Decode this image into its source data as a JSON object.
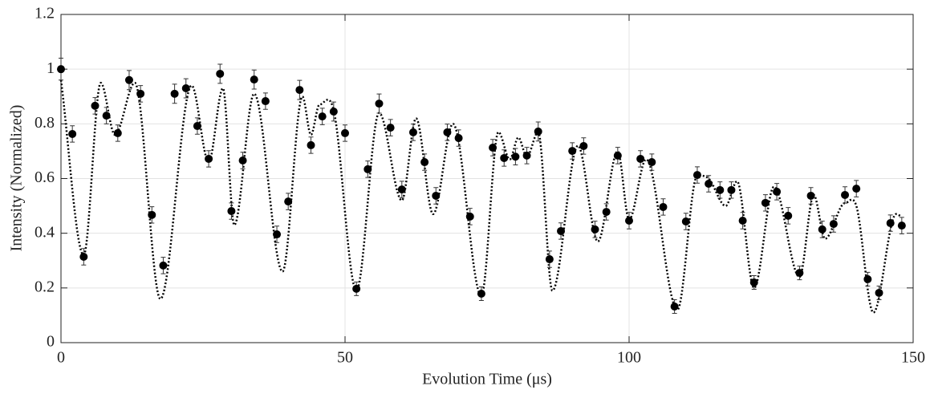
{
  "chart_data": {
    "type": "scatter",
    "xlabel": "Evolution Time (μs)",
    "ylabel": "Intensity (Normalized)",
    "xlim": [
      0,
      150
    ],
    "ylim": [
      0,
      1.2
    ],
    "xticks": [
      0,
      50,
      100,
      150
    ],
    "yticks": [
      0,
      0.2,
      0.4,
      0.6,
      0.8,
      1,
      1.2
    ],
    "grid": true,
    "series": [
      {
        "type": "scatter",
        "color": "#000000",
        "x": [
          0,
          2,
          4,
          6,
          8,
          10,
          12,
          14,
          16,
          18,
          20,
          22,
          24,
          26,
          28,
          30,
          32,
          34,
          36,
          38,
          40,
          42,
          44,
          46,
          48,
          50,
          52,
          54,
          56,
          58,
          60,
          62,
          64,
          66,
          68,
          70,
          72,
          74,
          76,
          78,
          80,
          82,
          84,
          86,
          88,
          90,
          92,
          94,
          96,
          98,
          100,
          102,
          104,
          106,
          108,
          110,
          112,
          114,
          116,
          118,
          120,
          122,
          124,
          126,
          128,
          130,
          132,
          134,
          136,
          138,
          140,
          142,
          144,
          146,
          148
        ],
        "values": [
          1.0,
          0.763,
          0.314,
          0.866,
          0.83,
          0.766,
          0.96,
          0.91,
          0.467,
          0.282,
          0.91,
          0.93,
          0.792,
          0.672,
          0.983,
          0.481,
          0.666,
          0.962,
          0.883,
          0.396,
          0.516,
          0.924,
          0.722,
          0.827,
          0.845,
          0.766,
          0.197,
          0.634,
          0.874,
          0.786,
          0.56,
          0.769,
          0.66,
          0.537,
          0.769,
          0.748,
          0.461,
          0.179,
          0.713,
          0.675,
          0.68,
          0.684,
          0.772,
          0.305,
          0.408,
          0.701,
          0.719,
          0.414,
          0.478,
          0.684,
          0.446,
          0.672,
          0.66,
          0.496,
          0.132,
          0.443,
          0.613,
          0.581,
          0.558,
          0.558,
          0.446,
          0.22,
          0.511,
          0.552,
          0.464,
          0.255,
          0.537,
          0.414,
          0.434,
          0.54,
          0.563,
          0.232,
          0.182,
          0.437,
          0.428
        ],
        "errors": [
          0.04,
          0.03,
          0.03,
          0.03,
          0.03,
          0.03,
          0.035,
          0.03,
          0.03,
          0.03,
          0.035,
          0.035,
          0.03,
          0.03,
          0.035,
          0.03,
          0.03,
          0.035,
          0.03,
          0.03,
          0.03,
          0.035,
          0.03,
          0.03,
          0.035,
          0.03,
          0.025,
          0.03,
          0.035,
          0.03,
          0.03,
          0.03,
          0.03,
          0.03,
          0.03,
          0.03,
          0.03,
          0.025,
          0.03,
          0.03,
          0.03,
          0.03,
          0.035,
          0.03,
          0.03,
          0.03,
          0.03,
          0.03,
          0.03,
          0.03,
          0.03,
          0.03,
          0.03,
          0.03,
          0.025,
          0.03,
          0.03,
          0.03,
          0.03,
          0.03,
          0.03,
          0.025,
          0.03,
          0.03,
          0.03,
          0.025,
          0.03,
          0.03,
          0.03,
          0.03,
          0.03,
          0.025,
          0.025,
          0.03,
          0.03
        ]
      },
      {
        "type": "line",
        "color": "#000000",
        "style": "dotted",
        "x": [
          0,
          4,
          7,
          9.5,
          13,
          17.5,
          23,
          26,
          28.5,
          30.5,
          34,
          39,
          42.5,
          44,
          45.5,
          48,
          52,
          56,
          60,
          62.5,
          65.5,
          69,
          74,
          77,
          79,
          80.5,
          82,
          84,
          86.5,
          91,
          94.5,
          98,
          100,
          103,
          108.5,
          112,
          114,
          117,
          119,
          122,
          125.5,
          130,
          132.5,
          134.5,
          138,
          140,
          143,
          147,
          148
        ],
        "values": [
          0.96,
          0.32,
          0.95,
          0.76,
          0.95,
          0.16,
          0.94,
          0.66,
          0.93,
          0.43,
          0.91,
          0.26,
          0.9,
          0.76,
          0.87,
          0.85,
          0.19,
          0.84,
          0.52,
          0.82,
          0.47,
          0.8,
          0.17,
          0.77,
          0.67,
          0.75,
          0.68,
          0.77,
          0.19,
          0.72,
          0.37,
          0.7,
          0.45,
          0.67,
          0.12,
          0.61,
          0.6,
          0.5,
          0.59,
          0.2,
          0.57,
          0.24,
          0.54,
          0.38,
          0.51,
          0.5,
          0.11,
          0.47,
          0.46
        ]
      }
    ]
  }
}
